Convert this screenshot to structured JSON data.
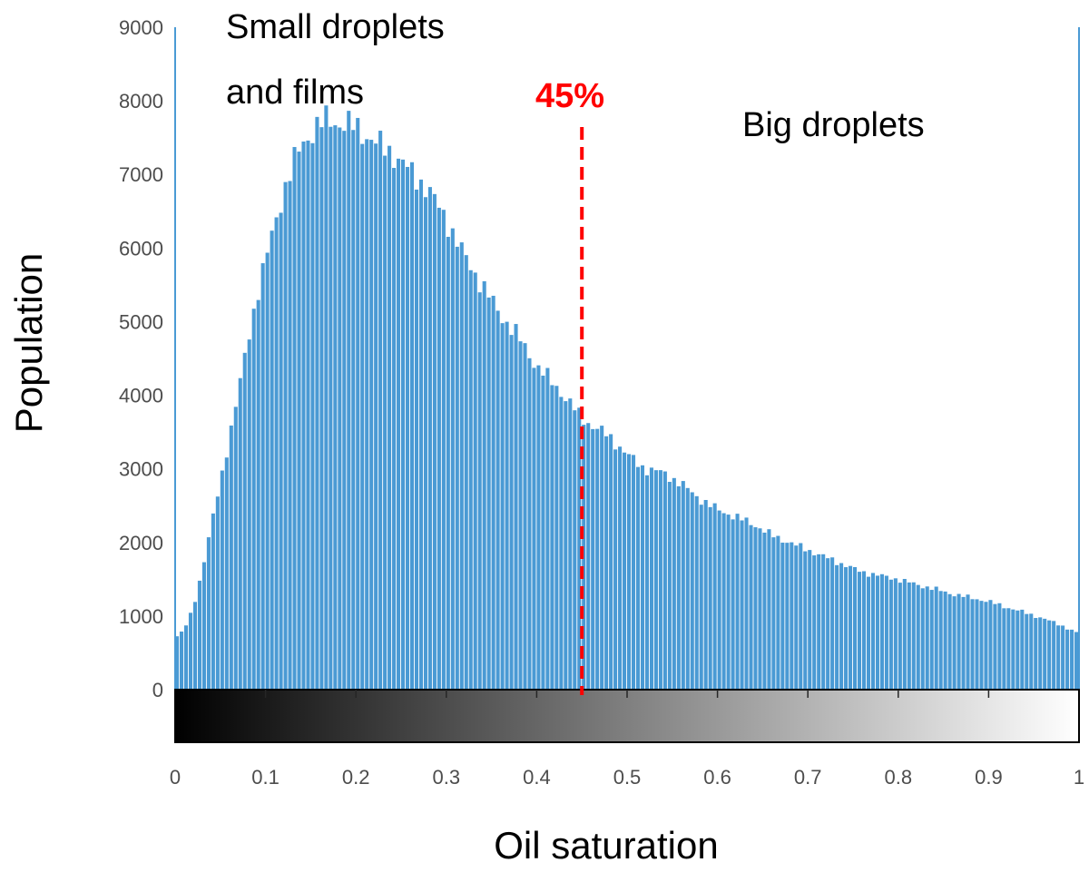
{
  "chart_data": {
    "type": "bar",
    "title": "",
    "xlabel": "Oil saturation",
    "ylabel": "Population",
    "xlim": [
      0,
      1
    ],
    "ylim": [
      0,
      9000
    ],
    "bin_width": 0.005,
    "xticks": [
      "0",
      "0.1",
      "0.2",
      "0.3",
      "0.4",
      "0.5",
      "0.6",
      "0.7",
      "0.8",
      "0.9",
      "1"
    ],
    "yticks": [
      "0",
      "1000",
      "2000",
      "3000",
      "4000",
      "5000",
      "6000",
      "7000",
      "8000",
      "9000"
    ],
    "bar_color": "#4a9ad4",
    "colorbar": {
      "from": "#000000",
      "to": "#ffffff"
    },
    "annotations": {
      "left_region": [
        "Small droplets",
        "and films"
      ],
      "right_region": "Big droplets",
      "threshold": {
        "x": 0.45,
        "label": "45%",
        "color": "#ff0000"
      }
    },
    "profile_points": [
      [
        0.0,
        700
      ],
      [
        0.01,
        800
      ],
      [
        0.02,
        1100
      ],
      [
        0.03,
        1600
      ],
      [
        0.04,
        2200
      ],
      [
        0.05,
        2800
      ],
      [
        0.06,
        3400
      ],
      [
        0.07,
        4000
      ],
      [
        0.08,
        4700
      ],
      [
        0.09,
        5300
      ],
      [
        0.1,
        5800
      ],
      [
        0.11,
        6300
      ],
      [
        0.12,
        6750
      ],
      [
        0.13,
        7100
      ],
      [
        0.14,
        7400
      ],
      [
        0.15,
        7550
      ],
      [
        0.16,
        7680
      ],
      [
        0.17,
        7750
      ],
      [
        0.18,
        7700
      ],
      [
        0.2,
        7650
      ],
      [
        0.22,
        7450
      ],
      [
        0.24,
        7300
      ],
      [
        0.26,
        7050
      ],
      [
        0.28,
        6800
      ],
      [
        0.3,
        6400
      ],
      [
        0.32,
        5900
      ],
      [
        0.34,
        5500
      ],
      [
        0.36,
        5100
      ],
      [
        0.38,
        4800
      ],
      [
        0.4,
        4400
      ],
      [
        0.42,
        4150
      ],
      [
        0.44,
        3850
      ],
      [
        0.45,
        3700
      ],
      [
        0.46,
        3600
      ],
      [
        0.48,
        3450
      ],
      [
        0.5,
        3200
      ],
      [
        0.52,
        3000
      ],
      [
        0.54,
        2950
      ],
      [
        0.56,
        2800
      ],
      [
        0.58,
        2600
      ],
      [
        0.6,
        2450
      ],
      [
        0.62,
        2350
      ],
      [
        0.64,
        2250
      ],
      [
        0.66,
        2100
      ],
      [
        0.68,
        2000
      ],
      [
        0.7,
        1900
      ],
      [
        0.72,
        1800
      ],
      [
        0.74,
        1700
      ],
      [
        0.76,
        1600
      ],
      [
        0.78,
        1550
      ],
      [
        0.8,
        1500
      ],
      [
        0.82,
        1430
      ],
      [
        0.84,
        1370
      ],
      [
        0.86,
        1300
      ],
      [
        0.88,
        1250
      ],
      [
        0.9,
        1200
      ],
      [
        0.92,
        1120
      ],
      [
        0.94,
        1050
      ],
      [
        0.96,
        970
      ],
      [
        0.98,
        880
      ],
      [
        1.0,
        760
      ]
    ]
  }
}
